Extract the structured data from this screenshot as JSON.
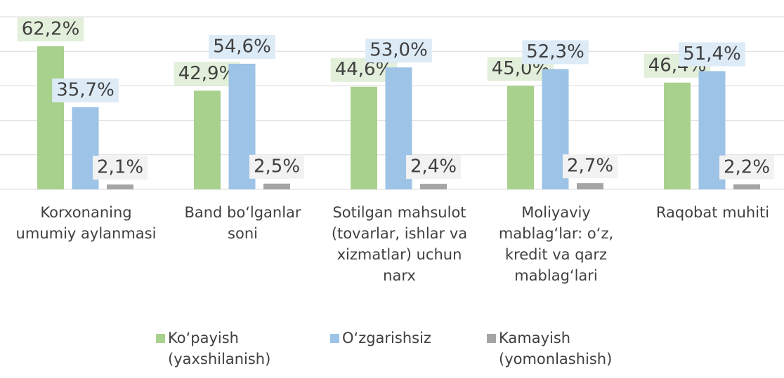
{
  "chart_data": {
    "type": "bar",
    "categories": [
      "Korxonaning umumiy aylanmasi",
      "Band bo‘lganlar soni",
      "Sotilgan mahsulot (tovarlar, ishlar va xizmatlar) uchun narx",
      "Moliyaviy mablag‘lar: o‘z, kredit va qarz mablag‘lari",
      "Raqobat muhiti"
    ],
    "series": [
      {
        "name": "Ko‘payish (yaxshilanish)",
        "color": "#a9d18e",
        "label_bg": "#e2efda",
        "values": [
          62.2,
          42.9,
          44.6,
          45.0,
          46.4
        ],
        "value_labels": [
          "62,2%",
          "42,9%",
          "44,6%",
          "45,0%",
          "46,4%"
        ]
      },
      {
        "name": "O‘zgarishsiz",
        "color": "#9dc3e6",
        "label_bg": "#ddebf7",
        "values": [
          35.7,
          54.6,
          53.0,
          52.3,
          51.4
        ],
        "value_labels": [
          "35,7%",
          "54,6%",
          "53,0%",
          "52,3%",
          "51,4%"
        ]
      },
      {
        "name": "Kamayish (yomonlashish)",
        "color": "#a5a5a5",
        "label_bg": "#f2f2f2",
        "values": [
          2.1,
          2.5,
          2.4,
          2.7,
          2.2
        ],
        "value_labels": [
          "2,1%",
          "2,5%",
          "2,4%",
          "2,7%",
          "2,2%"
        ]
      }
    ],
    "ylim": [
      0,
      75
    ],
    "yticks": [
      0,
      15,
      30,
      45,
      60,
      75
    ],
    "grid": true,
    "legend": "bottom"
  }
}
